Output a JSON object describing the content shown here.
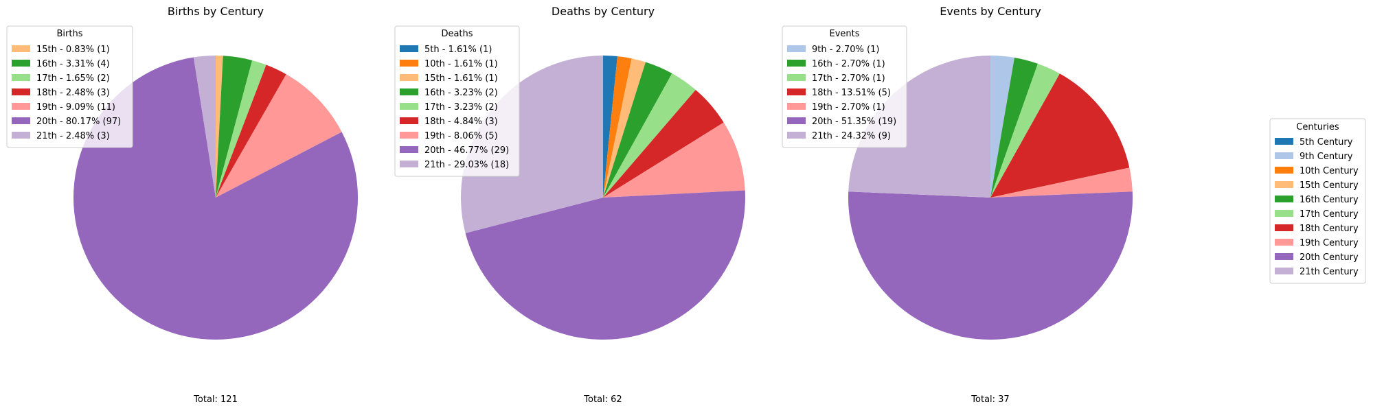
{
  "chart_data": [
    {
      "type": "pie",
      "title": "Births by Century",
      "legend_title": "Births",
      "legend_placement": "top-left",
      "total_label": "Total: 121",
      "slices": [
        {
          "century": "15th",
          "value": 1,
          "percent": 0.83,
          "color": "#ffbb78",
          "label": "15th - 0.83% (1)"
        },
        {
          "century": "16th",
          "value": 4,
          "percent": 3.31,
          "color": "#2ca02c",
          "label": "16th - 3.31% (4)"
        },
        {
          "century": "17th",
          "value": 2,
          "percent": 1.65,
          "color": "#98df8a",
          "label": "17th - 1.65% (2)"
        },
        {
          "century": "18th",
          "value": 3,
          "percent": 2.48,
          "color": "#d62728",
          "label": "18th - 2.48% (3)"
        },
        {
          "century": "19th",
          "value": 11,
          "percent": 9.09,
          "color": "#ff9896",
          "label": "19th - 9.09% (11)"
        },
        {
          "century": "20th",
          "value": 97,
          "percent": 80.17,
          "color": "#9467bd",
          "label": "20th - 80.17% (97)"
        },
        {
          "century": "21st",
          "value": 3,
          "percent": 2.48,
          "color": "#c5b0d5",
          "label": "21th - 2.48% (3)"
        }
      ]
    },
    {
      "type": "pie",
      "title": "Deaths by Century",
      "legend_title": "Deaths",
      "legend_placement": "top-left",
      "total_label": "Total: 62",
      "slices": [
        {
          "century": "5th",
          "value": 1,
          "percent": 1.61,
          "color": "#1f77b4",
          "label": "5th - 1.61% (1)"
        },
        {
          "century": "10th",
          "value": 1,
          "percent": 1.61,
          "color": "#ff7f0e",
          "label": "10th - 1.61% (1)"
        },
        {
          "century": "15th",
          "value": 1,
          "percent": 1.61,
          "color": "#ffbb78",
          "label": "15th - 1.61% (1)"
        },
        {
          "century": "16th",
          "value": 2,
          "percent": 3.23,
          "color": "#2ca02c",
          "label": "16th - 3.23% (2)"
        },
        {
          "century": "17th",
          "value": 2,
          "percent": 3.23,
          "color": "#98df8a",
          "label": "17th - 3.23% (2)"
        },
        {
          "century": "18th",
          "value": 3,
          "percent": 4.84,
          "color": "#d62728",
          "label": "18th - 4.84% (3)"
        },
        {
          "century": "19th",
          "value": 5,
          "percent": 8.06,
          "color": "#ff9896",
          "label": "19th - 8.06% (5)"
        },
        {
          "century": "20th",
          "value": 29,
          "percent": 46.77,
          "color": "#9467bd",
          "label": "20th - 46.77% (29)"
        },
        {
          "century": "21st",
          "value": 18,
          "percent": 29.03,
          "color": "#c5b0d5",
          "label": "21th - 29.03% (18)"
        }
      ]
    },
    {
      "type": "pie",
      "title": "Events by Century",
      "legend_title": "Events",
      "legend_placement": "top-left",
      "total_label": "Total: 37",
      "slices": [
        {
          "century": "9th",
          "value": 1,
          "percent": 2.7,
          "color": "#aec7e8",
          "label": "9th - 2.70% (1)"
        },
        {
          "century": "16th",
          "value": 1,
          "percent": 2.7,
          "color": "#2ca02c",
          "label": "16th - 2.70% (1)"
        },
        {
          "century": "17th",
          "value": 1,
          "percent": 2.7,
          "color": "#98df8a",
          "label": "17th - 2.70% (1)"
        },
        {
          "century": "18th",
          "value": 5,
          "percent": 13.51,
          "color": "#d62728",
          "label": "18th - 13.51% (5)"
        },
        {
          "century": "19th",
          "value": 1,
          "percent": 2.7,
          "color": "#ff9896",
          "label": "19th - 2.70% (1)"
        },
        {
          "century": "20th",
          "value": 19,
          "percent": 51.35,
          "color": "#9467bd",
          "label": "20th - 51.35% (19)"
        },
        {
          "century": "21st",
          "value": 9,
          "percent": 24.32,
          "color": "#c5b0d5",
          "label": "21th - 24.32% (9)"
        }
      ]
    }
  ],
  "centuries_legend": {
    "title": "Centuries",
    "placement": "right",
    "items": [
      {
        "label": "5th Century",
        "color": "#1f77b4"
      },
      {
        "label": "9th Century",
        "color": "#aec7e8"
      },
      {
        "label": "10th Century",
        "color": "#ff7f0e"
      },
      {
        "label": "15th Century",
        "color": "#ffbb78"
      },
      {
        "label": "16th Century",
        "color": "#2ca02c"
      },
      {
        "label": "17th Century",
        "color": "#98df8a"
      },
      {
        "label": "18th Century",
        "color": "#d62728"
      },
      {
        "label": "19th Century",
        "color": "#ff9896"
      },
      {
        "label": "20th Century",
        "color": "#9467bd"
      },
      {
        "label": "21th Century",
        "color": "#c5b0d5"
      }
    ]
  }
}
